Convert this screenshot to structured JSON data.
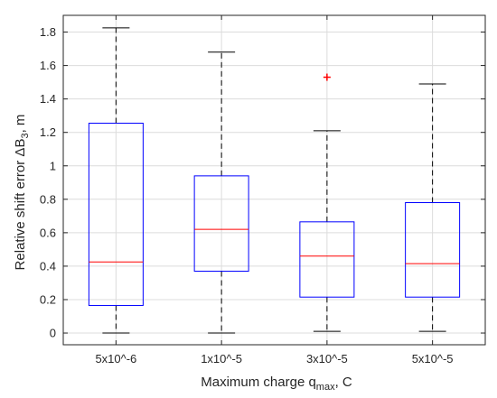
{
  "chart_data": {
    "type": "box",
    "xlabel_main": "Maximum charge q",
    "xlabel_sub": "max",
    "xlabel_tail": ", C",
    "ylabel_main": "Relative shift error ΔB",
    "ylabel_sub": "3",
    "ylabel_tail": ", m",
    "ylim": [
      -0.07,
      1.9
    ],
    "yticks": [
      0,
      0.2,
      0.4,
      0.6,
      0.8,
      1,
      1.2,
      1.4,
      1.6,
      1.8
    ],
    "ytick_labels": [
      "0",
      "0.2",
      "0.4",
      "0.6",
      "0.8",
      "1",
      "1.2",
      "1.4",
      "1.6",
      "1.8"
    ],
    "grid": true,
    "categories": [
      "5x10^-6",
      "1x10^-5",
      "3x10^-5",
      "5x10^-5"
    ],
    "boxes": [
      {
        "whisker_low": 0.0,
        "q1": 0.165,
        "median": 0.425,
        "q3": 1.255,
        "whisker_high": 1.825,
        "outliers": []
      },
      {
        "whisker_low": 0.0,
        "q1": 0.37,
        "median": 0.62,
        "q3": 0.94,
        "whisker_high": 1.68,
        "outliers": []
      },
      {
        "whisker_low": 0.01,
        "q1": 0.215,
        "median": 0.46,
        "q3": 0.665,
        "whisker_high": 1.21,
        "outliers": [
          1.53
        ]
      },
      {
        "whisker_low": 0.01,
        "q1": 0.215,
        "median": 0.415,
        "q3": 0.78,
        "whisker_high": 1.49,
        "outliers": []
      }
    ],
    "colors": {
      "box": "#0000ff",
      "median": "#ff0000",
      "whisker": "#000000",
      "outlier": "#ff0000",
      "grid": "#dcdcdc",
      "axis": "#262626"
    }
  }
}
